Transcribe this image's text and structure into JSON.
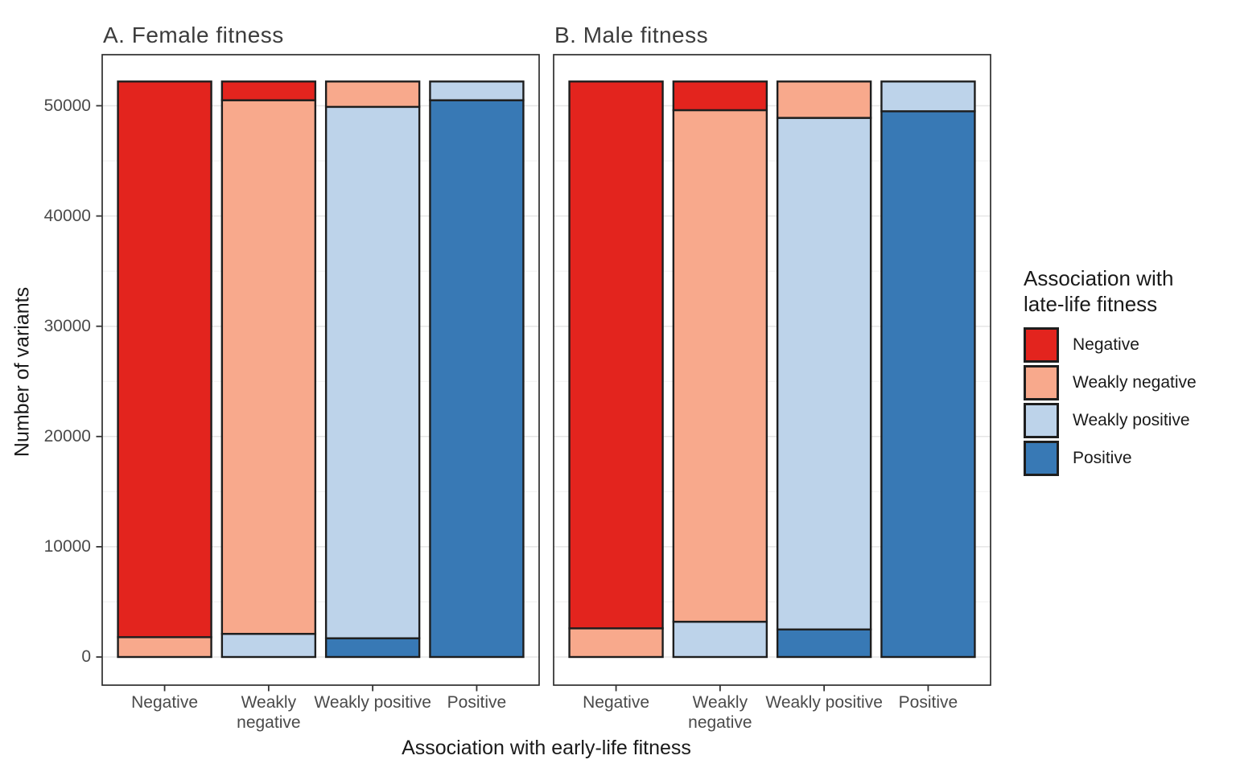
{
  "chart_data": {
    "type": "bar",
    "stacked": true,
    "orientation": "vertical",
    "xlabel": "Association with early-life fitness",
    "ylabel": "Number of variants",
    "yticks": [
      0,
      10000,
      20000,
      30000,
      40000,
      50000
    ],
    "minor_gridlines": [
      5000,
      15000,
      25000,
      35000,
      45000
    ],
    "ylim": [
      -2600,
      54800
    ],
    "bar_total": 52200,
    "grid": true,
    "legend_position": "right",
    "stack_order_bottom_to_top": [
      "Positive",
      "Weakly positive",
      "Weakly negative",
      "Negative"
    ],
    "panels": [
      {
        "label": "A. Female fitness",
        "categories": [
          "Negative",
          "Weakly negative",
          "Weakly positive",
          "Positive"
        ],
        "series": [
          {
            "name": "Negative",
            "values": [
              50400,
              1700,
              0,
              0
            ]
          },
          {
            "name": "Weakly negative",
            "values": [
              1800,
              48400,
              2300,
              0
            ]
          },
          {
            "name": "Weakly positive",
            "values": [
              0,
              2100,
              48200,
              1700
            ]
          },
          {
            "name": "Positive",
            "values": [
              0,
              0,
              1700,
              50500
            ]
          }
        ]
      },
      {
        "label": "B. Male fitness",
        "categories": [
          "Negative",
          "Weakly negative",
          "Weakly positive",
          "Positive"
        ],
        "series": [
          {
            "name": "Negative",
            "values": [
              49600,
              2600,
              0,
              0
            ]
          },
          {
            "name": "Weakly negative",
            "values": [
              2600,
              46400,
              3300,
              0
            ]
          },
          {
            "name": "Weakly positive",
            "values": [
              0,
              3200,
              46400,
              2700
            ]
          },
          {
            "name": "Positive",
            "values": [
              0,
              0,
              2500,
              49500
            ]
          }
        ]
      }
    ]
  },
  "legend": {
    "title": "Association with\nlate-life fitness",
    "entries": [
      {
        "label": "Negative",
        "color": "#E3241E"
      },
      {
        "label": "Weakly negative",
        "color": "#F8A98C"
      },
      {
        "label": "Weakly positive",
        "color": "#BDD3EA"
      },
      {
        "label": "Positive",
        "color": "#3879B5"
      }
    ]
  },
  "colors": {
    "background": "#FFFFFF",
    "bar_stroke": "#1E1E1E",
    "panel_border": "#2E2E2E",
    "grid_major": "#E6E6E6",
    "grid_minor": "#F2F2F2",
    "axis_tick": "#333333",
    "tick_label": "#4A4A4A",
    "axis_title": "#1A1A1A",
    "panel_title": "#3C3C3C"
  }
}
